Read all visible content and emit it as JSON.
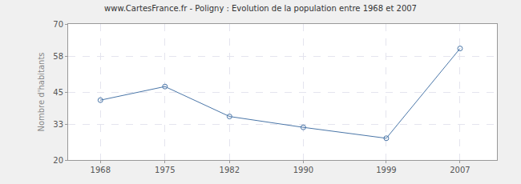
{
  "chart_data": {
    "type": "line",
    "title": "www.CartesFrance.fr - Poligny : Evolution de la population entre 1968 et 2007",
    "y_label": "Nombre d'habitants",
    "x": [
      1968,
      1975,
      1982,
      1990,
      1999,
      2007
    ],
    "values": [
      42,
      47,
      36,
      32,
      28,
      61
    ],
    "color": "#4a76a8",
    "marker": "hollow-circle",
    "xlim": [
      1964.5,
      2011
    ],
    "xticks": [
      1968,
      1975,
      1982,
      1990,
      1999,
      2007
    ],
    "ylim": [
      20,
      70
    ],
    "yticks": [
      20,
      33,
      45,
      58,
      70
    ],
    "grid": true
  }
}
